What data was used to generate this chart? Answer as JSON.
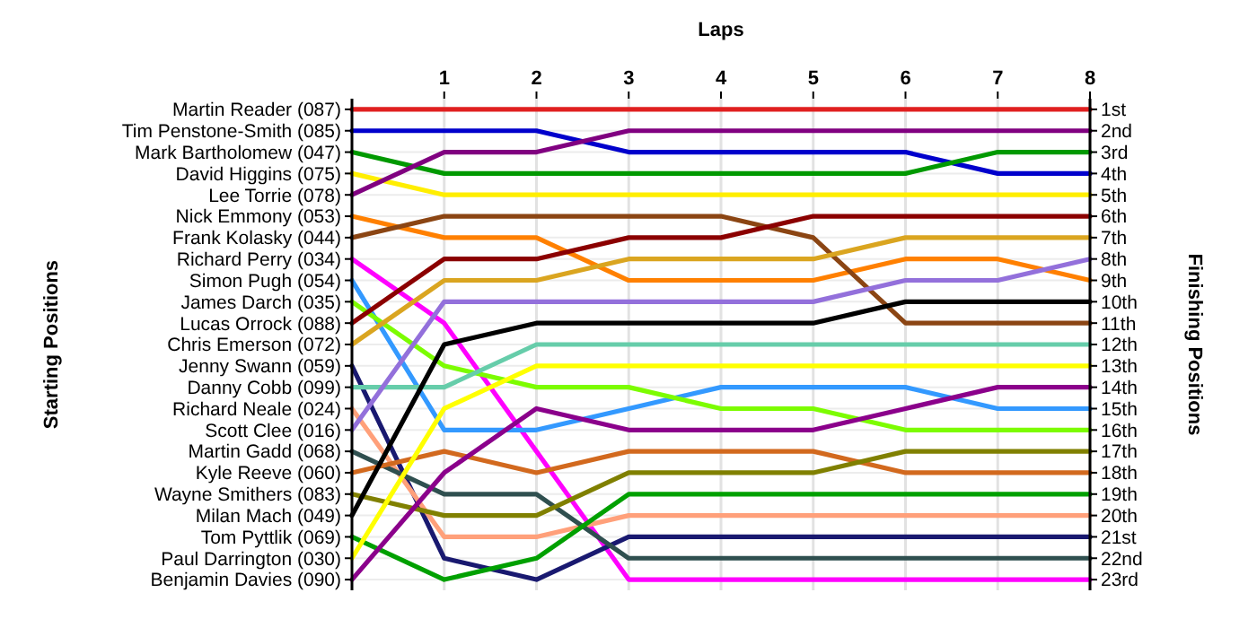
{
  "chart_data": {
    "type": "line",
    "xlabel": "Laps",
    "annotations": [
      "Starting Positions"
    ],
    "y2label": "Finishing Positions",
    "x": [
      0,
      1,
      2,
      3,
      4,
      5,
      6,
      7,
      8
    ],
    "xlim": [
      0,
      8
    ],
    "xticks": [
      1,
      2,
      3,
      4,
      5,
      6,
      7,
      8
    ],
    "y_categories": [
      "Martin Reader (087)",
      "Tim Penstone-Smith (085)",
      "Mark Bartholomew (047)",
      "David Higgins (075)",
      "Lee Torrie (078)",
      "Nick Emmony (053)",
      "Frank Kolasky (044)",
      "Richard Perry (034)",
      "Simon Pugh (054)",
      "James Darch (035)",
      "Lucas Orrock (088)",
      "Chris Emerson (072)",
      "Jenny Swann (059)",
      "Danny Cobb (099)",
      "Richard Neale (024)",
      "Scott Clee (016)",
      "Martin Gadd (068)",
      "Kyle Reeve (060)",
      "Wayne Smithers (083)",
      "Milan Mach (049)",
      "Tom Pyttlik (069)",
      "Paul Darrington (030)",
      "Benjamin Davies (090)"
    ],
    "y2lim": [
      23.5,
      0.5
    ],
    "y2ticks": [
      {
        "value": 1,
        "label": "1st"
      },
      {
        "value": 2,
        "label": "2nd"
      },
      {
        "value": 3,
        "label": "3rd"
      },
      {
        "value": 4,
        "label": "4th"
      },
      {
        "value": 5,
        "label": "5th"
      },
      {
        "value": 6,
        "label": "6th"
      },
      {
        "value": 7,
        "label": "7th"
      },
      {
        "value": 8,
        "label": "8th"
      },
      {
        "value": 9,
        "label": "9th"
      },
      {
        "value": 10,
        "label": "10th"
      },
      {
        "value": 11,
        "label": "11th"
      },
      {
        "value": 12,
        "label": "12th"
      },
      {
        "value": 13,
        "label": "13th"
      },
      {
        "value": 14,
        "label": "14th"
      },
      {
        "value": 15,
        "label": "15th"
      },
      {
        "value": 16,
        "label": "16th"
      },
      {
        "value": 17,
        "label": "17th"
      },
      {
        "value": 18,
        "label": "18th"
      },
      {
        "value": 19,
        "label": "19th"
      },
      {
        "value": 20,
        "label": "20th"
      },
      {
        "value": 21,
        "label": "21st"
      },
      {
        "value": 22,
        "label": "22nd"
      },
      {
        "value": 23,
        "label": "23rd"
      }
    ],
    "grid": true,
    "series": [
      {
        "axis": "y2",
        "color": "#e02020",
        "values": [
          1,
          1,
          1,
          1,
          1,
          1,
          1,
          1,
          1
        ]
      },
      {
        "axis": "y2",
        "color": "#0000cc",
        "values": [
          2,
          2,
          2,
          3,
          3,
          3,
          3,
          4,
          4
        ]
      },
      {
        "axis": "y2",
        "color": "#009900",
        "values": [
          3,
          4,
          4,
          4,
          4,
          4,
          4,
          3,
          3
        ]
      },
      {
        "axis": "y2",
        "color": "#ffee00",
        "values": [
          4,
          5,
          5,
          5,
          5,
          5,
          5,
          5,
          5
        ]
      },
      {
        "axis": "y2",
        "color": "#800080",
        "values": [
          5,
          3,
          3,
          2,
          2,
          2,
          2,
          2,
          2
        ]
      },
      {
        "axis": "y2",
        "color": "#ff8000",
        "values": [
          6,
          7,
          7,
          9,
          9,
          9,
          8,
          8,
          9
        ]
      },
      {
        "axis": "y2",
        "color": "#8b4513",
        "values": [
          7,
          6,
          6,
          6,
          6,
          7,
          11,
          11,
          11
        ]
      },
      {
        "axis": "y2",
        "color": "#ff00ff",
        "values": [
          8,
          11,
          17,
          23,
          23,
          23,
          23,
          23,
          23
        ]
      },
      {
        "axis": "y2",
        "color": "#3399ff",
        "values": [
          9,
          16,
          16,
          15,
          14,
          14,
          14,
          15,
          15
        ]
      },
      {
        "axis": "y2",
        "color": "#7cfc00",
        "values": [
          10,
          13,
          14,
          14,
          15,
          15,
          16,
          16,
          16
        ]
      },
      {
        "axis": "y2",
        "color": "#8b0000",
        "values": [
          11,
          8,
          8,
          7,
          7,
          6,
          6,
          6,
          6
        ]
      },
      {
        "axis": "y2",
        "color": "#daa520",
        "values": [
          12,
          9,
          9,
          8,
          8,
          8,
          7,
          7,
          7
        ]
      },
      {
        "axis": "y2",
        "color": "#191970",
        "values": [
          13,
          22,
          23,
          21,
          21,
          21,
          21,
          21,
          21
        ]
      },
      {
        "axis": "y2",
        "color": "#66cdaa",
        "values": [
          14,
          14,
          12,
          12,
          12,
          12,
          12,
          12,
          12
        ]
      },
      {
        "axis": "y2",
        "color": "#ffa07a",
        "values": [
          15,
          21,
          21,
          20,
          20,
          20,
          20,
          20,
          20
        ]
      },
      {
        "axis": "y2",
        "color": "#9370db",
        "values": [
          16,
          10,
          10,
          10,
          10,
          10,
          9,
          9,
          8
        ]
      },
      {
        "axis": "y2",
        "color": "#2f4f4f",
        "values": [
          17,
          19,
          19,
          22,
          22,
          22,
          22,
          22,
          22
        ]
      },
      {
        "axis": "y2",
        "color": "#d2691e",
        "values": [
          18,
          17,
          18,
          17,
          17,
          17,
          18,
          18,
          18
        ]
      },
      {
        "axis": "y2",
        "color": "#808000",
        "values": [
          19,
          20,
          20,
          18,
          18,
          18,
          17,
          17,
          17
        ]
      },
      {
        "axis": "y2",
        "color": "#000000",
        "values": [
          20,
          12,
          11,
          11,
          11,
          11,
          10,
          10,
          10
        ]
      },
      {
        "axis": "y2",
        "color": "#00a000",
        "values": [
          21,
          23,
          22,
          19,
          19,
          19,
          19,
          19,
          19
        ]
      },
      {
        "axis": "y2",
        "color": "#ffff00",
        "values": [
          22,
          15,
          13,
          13,
          13,
          13,
          13,
          13,
          13
        ]
      },
      {
        "axis": "y2",
        "color": "#8b008b",
        "values": [
          23,
          18,
          15,
          16,
          16,
          16,
          15,
          14,
          14
        ]
      }
    ]
  }
}
